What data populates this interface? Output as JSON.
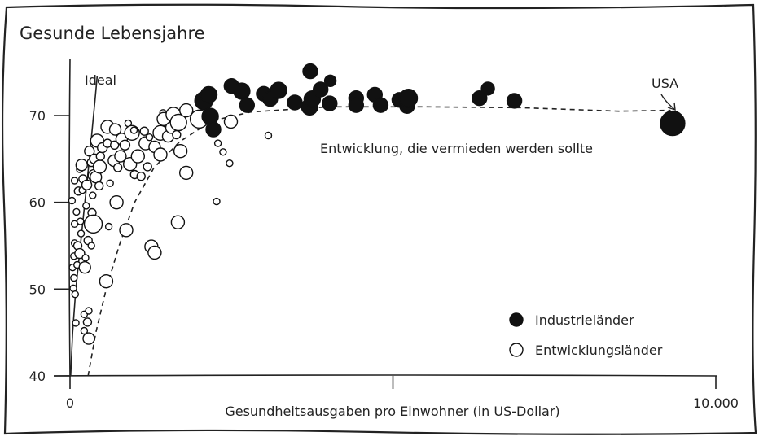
{
  "chart_data": {
    "type": "scatter",
    "title": "Gesunde Lebensjahre",
    "xlabel": "Gesundheitsausgaben pro Einwohner (in US-Dollar)",
    "ylabel": "",
    "xlim": [
      0,
      10000
    ],
    "ylim": [
      40,
      77
    ],
    "x_tick_labels": [
      "0",
      "10.000"
    ],
    "x_ticks": [
      0,
      5000,
      10000
    ],
    "y_ticks": [
      40,
      50,
      60,
      70
    ],
    "y_tick_labels": [
      "40",
      "50",
      "60",
      "70"
    ],
    "grid": false,
    "legend_position": "bottom-right",
    "annotations": {
      "ideal": "Ideal",
      "trend": "Entwicklung, die vermieden werden sollte",
      "usa": "USA"
    },
    "series": [
      {
        "name": "Industrieländer",
        "fill": "#111111",
        "points": [
          {
            "x": 2070,
            "y": 71.7,
            "s": 11
          },
          {
            "x": 2150,
            "y": 72.4,
            "s": 10
          },
          {
            "x": 2170,
            "y": 69.9,
            "s": 10
          },
          {
            "x": 2220,
            "y": 68.4,
            "s": 9
          },
          {
            "x": 2500,
            "y": 73.4,
            "s": 9
          },
          {
            "x": 2660,
            "y": 72.8,
            "s": 10
          },
          {
            "x": 2740,
            "y": 71.2,
            "s": 9
          },
          {
            "x": 3000,
            "y": 72.5,
            "s": 9
          },
          {
            "x": 3100,
            "y": 71.9,
            "s": 9
          },
          {
            "x": 3230,
            "y": 72.9,
            "s": 10
          },
          {
            "x": 3480,
            "y": 71.5,
            "s": 9
          },
          {
            "x": 3720,
            "y": 75.1,
            "s": 9
          },
          {
            "x": 3710,
            "y": 71.0,
            "s": 10
          },
          {
            "x": 3750,
            "y": 71.9,
            "s": 10
          },
          {
            "x": 3880,
            "y": 73.0,
            "s": 9
          },
          {
            "x": 4030,
            "y": 74.0,
            "s": 7
          },
          {
            "x": 4020,
            "y": 71.4,
            "s": 9
          },
          {
            "x": 4430,
            "y": 72.0,
            "s": 9
          },
          {
            "x": 4430,
            "y": 71.2,
            "s": 9
          },
          {
            "x": 4720,
            "y": 72.4,
            "s": 9
          },
          {
            "x": 4810,
            "y": 71.2,
            "s": 9
          },
          {
            "x": 5100,
            "y": 71.8,
            "s": 9
          },
          {
            "x": 5220,
            "y": 71.1,
            "s": 9
          },
          {
            "x": 5240,
            "y": 72.0,
            "s": 11
          },
          {
            "x": 6340,
            "y": 72.0,
            "s": 9
          },
          {
            "x": 6470,
            "y": 73.1,
            "s": 8
          },
          {
            "x": 6880,
            "y": 71.7,
            "s": 9
          },
          {
            "x": 9330,
            "y": 69.1,
            "s": 15
          }
        ]
      },
      {
        "name": "Entwicklungsländer",
        "fill": "#ffffff",
        "points": [
          {
            "x": 30,
            "y": 60.2,
            "s": 4
          },
          {
            "x": 40,
            "y": 52.5,
            "s": 4
          },
          {
            "x": 50,
            "y": 50.1,
            "s": 4
          },
          {
            "x": 60,
            "y": 51.3,
            "s": 4
          },
          {
            "x": 60,
            "y": 53.8,
            "s": 4
          },
          {
            "x": 70,
            "y": 55.3,
            "s": 4
          },
          {
            "x": 70,
            "y": 57.5,
            "s": 4
          },
          {
            "x": 70,
            "y": 62.5,
            "s": 4
          },
          {
            "x": 80,
            "y": 49.4,
            "s": 4
          },
          {
            "x": 90,
            "y": 46.1,
            "s": 4
          },
          {
            "x": 100,
            "y": 58.9,
            "s": 4
          },
          {
            "x": 110,
            "y": 52.8,
            "s": 4
          },
          {
            "x": 120,
            "y": 55.0,
            "s": 5
          },
          {
            "x": 130,
            "y": 61.3,
            "s": 5
          },
          {
            "x": 150,
            "y": 54.1,
            "s": 6
          },
          {
            "x": 150,
            "y": 63.8,
            "s": 4
          },
          {
            "x": 160,
            "y": 57.8,
            "s": 4
          },
          {
            "x": 170,
            "y": 56.4,
            "s": 4
          },
          {
            "x": 180,
            "y": 64.3,
            "s": 7
          },
          {
            "x": 190,
            "y": 61.4,
            "s": 4
          },
          {
            "x": 200,
            "y": 62.7,
            "s": 5
          },
          {
            "x": 220,
            "y": 45.2,
            "s": 4
          },
          {
            "x": 220,
            "y": 47.1,
            "s": 4
          },
          {
            "x": 230,
            "y": 52.5,
            "s": 7
          },
          {
            "x": 240,
            "y": 53.6,
            "s": 4
          },
          {
            "x": 250,
            "y": 59.6,
            "s": 4
          },
          {
            "x": 260,
            "y": 62.0,
            "s": 6
          },
          {
            "x": 270,
            "y": 46.2,
            "s": 5
          },
          {
            "x": 280,
            "y": 55.6,
            "s": 5
          },
          {
            "x": 290,
            "y": 47.5,
            "s": 4
          },
          {
            "x": 290,
            "y": 44.3,
            "s": 7
          },
          {
            "x": 300,
            "y": 65.9,
            "s": 6
          },
          {
            "x": 320,
            "y": 57.0,
            "s": 4
          },
          {
            "x": 330,
            "y": 55.0,
            "s": 4
          },
          {
            "x": 330,
            "y": 64.6,
            "s": 5
          },
          {
            "x": 340,
            "y": 58.8,
            "s": 5
          },
          {
            "x": 350,
            "y": 60.8,
            "s": 4
          },
          {
            "x": 360,
            "y": 57.5,
            "s": 11
          },
          {
            "x": 370,
            "y": 63.1,
            "s": 7
          },
          {
            "x": 380,
            "y": 65.0,
            "s": 6
          },
          {
            "x": 400,
            "y": 62.9,
            "s": 7
          },
          {
            "x": 420,
            "y": 67.1,
            "s": 8
          },
          {
            "x": 450,
            "y": 61.9,
            "s": 5
          },
          {
            "x": 460,
            "y": 64.1,
            "s": 8
          },
          {
            "x": 470,
            "y": 65.3,
            "s": 5
          },
          {
            "x": 500,
            "y": 66.3,
            "s": 6
          },
          {
            "x": 560,
            "y": 50.9,
            "s": 8
          },
          {
            "x": 580,
            "y": 68.7,
            "s": 8
          },
          {
            "x": 580,
            "y": 66.8,
            "s": 5
          },
          {
            "x": 600,
            "y": 57.2,
            "s": 4
          },
          {
            "x": 620,
            "y": 62.2,
            "s": 4
          },
          {
            "x": 680,
            "y": 64.8,
            "s": 7
          },
          {
            "x": 690,
            "y": 66.6,
            "s": 5
          },
          {
            "x": 700,
            "y": 68.4,
            "s": 7
          },
          {
            "x": 720,
            "y": 60.0,
            "s": 8
          },
          {
            "x": 740,
            "y": 64.0,
            "s": 5
          },
          {
            "x": 780,
            "y": 65.3,
            "s": 7
          },
          {
            "x": 800,
            "y": 67.3,
            "s": 7
          },
          {
            "x": 850,
            "y": 66.6,
            "s": 6
          },
          {
            "x": 870,
            "y": 56.8,
            "s": 8
          },
          {
            "x": 900,
            "y": 69.1,
            "s": 4
          },
          {
            "x": 930,
            "y": 64.4,
            "s": 8
          },
          {
            "x": 960,
            "y": 68.0,
            "s": 9
          },
          {
            "x": 990,
            "y": 68.3,
            "s": 4
          },
          {
            "x": 1000,
            "y": 63.2,
            "s": 5
          },
          {
            "x": 1050,
            "y": 65.3,
            "s": 8
          },
          {
            "x": 1100,
            "y": 63.0,
            "s": 5
          },
          {
            "x": 1150,
            "y": 68.2,
            "s": 5
          },
          {
            "x": 1170,
            "y": 66.8,
            "s": 8
          },
          {
            "x": 1200,
            "y": 64.1,
            "s": 5
          },
          {
            "x": 1230,
            "y": 67.5,
            "s": 4
          },
          {
            "x": 1260,
            "y": 54.9,
            "s": 8
          },
          {
            "x": 1310,
            "y": 54.2,
            "s": 8
          },
          {
            "x": 1310,
            "y": 66.4,
            "s": 7
          },
          {
            "x": 1400,
            "y": 65.5,
            "s": 8
          },
          {
            "x": 1400,
            "y": 68.0,
            "s": 9
          },
          {
            "x": 1440,
            "y": 70.3,
            "s": 4
          },
          {
            "x": 1450,
            "y": 69.6,
            "s": 8
          },
          {
            "x": 1520,
            "y": 67.6,
            "s": 7
          },
          {
            "x": 1570,
            "y": 68.6,
            "s": 7
          },
          {
            "x": 1600,
            "y": 70.1,
            "s": 9
          },
          {
            "x": 1650,
            "y": 67.8,
            "s": 5
          },
          {
            "x": 1670,
            "y": 57.7,
            "s": 8
          },
          {
            "x": 1680,
            "y": 69.2,
            "s": 10
          },
          {
            "x": 1710,
            "y": 65.9,
            "s": 8
          },
          {
            "x": 1800,
            "y": 63.4,
            "s": 8
          },
          {
            "x": 1800,
            "y": 70.6,
            "s": 8
          },
          {
            "x": 2000,
            "y": 69.6,
            "s": 11
          },
          {
            "x": 2270,
            "y": 60.1,
            "s": 4
          },
          {
            "x": 2290,
            "y": 66.8,
            "s": 4
          },
          {
            "x": 2370,
            "y": 65.8,
            "s": 4
          },
          {
            "x": 2470,
            "y": 64.5,
            "s": 4
          },
          {
            "x": 2490,
            "y": 69.3,
            "s": 8
          },
          {
            "x": 3070,
            "y": 67.7,
            "s": 4
          }
        ]
      }
    ]
  }
}
